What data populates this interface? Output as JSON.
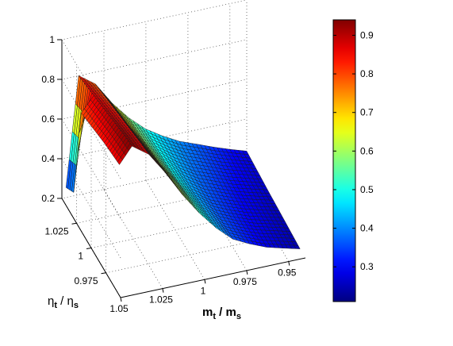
{
  "chart_data": {
    "type": "surface3d",
    "colormap": "jet",
    "grid": true,
    "xlabel": {
      "main": "m",
      "sub": "t",
      "sep": " / ",
      "main2": "m",
      "sub2": "s"
    },
    "ylabel": {
      "main": "η",
      "sub": "t",
      "sep": " / ",
      "main2": "η",
      "sub2": "s"
    },
    "x_axis": {
      "range": [
        0.94,
        1.05
      ],
      "tick_values": [
        1.05,
        1.025,
        1,
        0.975,
        0.95
      ],
      "tick_labels": [
        "1.05",
        "1.025",
        "1",
        "0.975",
        "0.95"
      ]
    },
    "y_axis": {
      "range": [
        0.95,
        1.05
      ],
      "tick_values": [
        1.025,
        1,
        0.975
      ],
      "tick_labels": [
        "1.025",
        "1",
        "0.975"
      ]
    },
    "z_axis": {
      "range": [
        0.2,
        1.0
      ],
      "tick_values": [
        0.2,
        0.4,
        0.6,
        0.8,
        1.0
      ],
      "tick_labels": [
        "0.2",
        "0.4",
        "0.6",
        "0.8",
        "1"
      ]
    },
    "colorbar": {
      "range": [
        0.21,
        0.94
      ],
      "tick_values": [
        0.3,
        0.4,
        0.5,
        0.6,
        0.7,
        0.8,
        0.9
      ],
      "tick_labels": [
        "0.3",
        "0.4",
        "0.5",
        "0.6",
        "0.7",
        "0.8",
        "0.9"
      ]
    },
    "surface": {
      "m_ratio": [
        0.9425,
        0.9525,
        0.9625,
        0.9725,
        0.9825,
        0.9925,
        1.0025,
        1.0125,
        1.0225,
        1.0325,
        1.0425,
        1.05
      ],
      "eta_ratio": [
        0.952,
        0.965,
        0.978,
        0.991,
        1.004,
        1.017,
        1.03,
        1.043
      ],
      "z": [
        [
          0.24,
          0.262,
          0.285,
          0.32,
          0.362,
          0.437,
          0.53,
          0.64,
          0.768,
          0.88,
          0.94,
          0.86
        ],
        [
          0.245,
          0.268,
          0.29,
          0.322,
          0.36,
          0.43,
          0.525,
          0.63,
          0.75,
          0.87,
          0.93,
          0.85
        ],
        [
          0.25,
          0.272,
          0.294,
          0.325,
          0.362,
          0.425,
          0.515,
          0.62,
          0.735,
          0.855,
          0.915,
          0.84
        ],
        [
          0.255,
          0.277,
          0.3,
          0.33,
          0.365,
          0.422,
          0.505,
          0.605,
          0.72,
          0.84,
          0.9,
          0.825
        ],
        [
          0.26,
          0.282,
          0.306,
          0.338,
          0.372,
          0.425,
          0.498,
          0.595,
          0.705,
          0.825,
          0.885,
          0.81
        ],
        [
          0.266,
          0.29,
          0.315,
          0.348,
          0.38,
          0.43,
          0.495,
          0.585,
          0.69,
          0.81,
          0.87,
          0.795
        ],
        [
          0.272,
          0.298,
          0.325,
          0.358,
          0.39,
          0.438,
          0.495,
          0.578,
          0.678,
          0.795,
          0.855,
          0.33
        ],
        [
          0.278,
          0.305,
          0.335,
          0.368,
          0.4,
          0.445,
          0.498,
          0.572,
          0.665,
          0.78,
          0.84,
          0.29
        ]
      ]
    }
  }
}
